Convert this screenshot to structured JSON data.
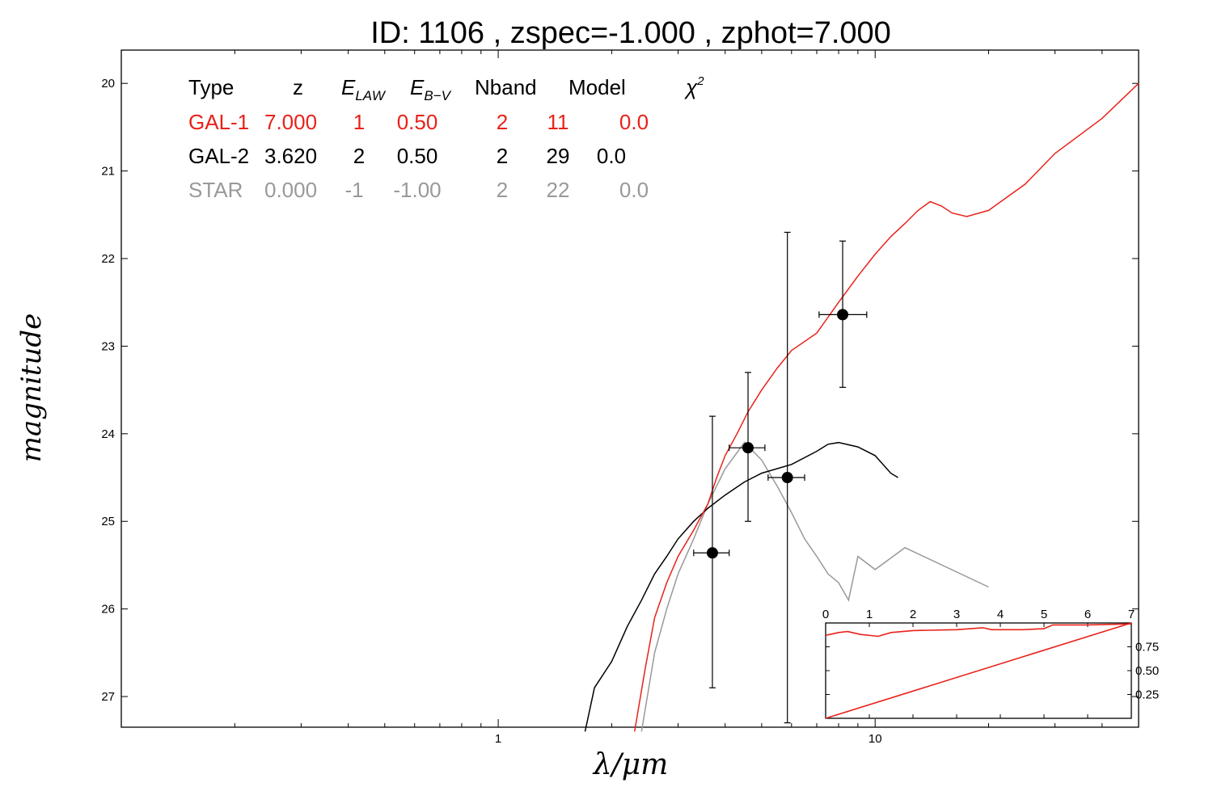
{
  "chart_data": [
    {
      "type": "line",
      "title": "ID:  1106  , zspec=-1.000 , zphot=7.000",
      "xlabel": "λ/μm",
      "ylabel": "magnitude",
      "x_scale": "log",
      "xlim": [
        0.1,
        50
      ],
      "ylim": [
        27.35,
        19.62
      ],
      "y_inverted": true,
      "x_ticks": [
        {
          "value": 1,
          "label": "1"
        },
        {
          "value": 10,
          "label": "10"
        }
      ],
      "y_ticks": [
        20,
        21,
        22,
        23,
        24,
        25,
        26,
        27
      ],
      "y_tick_labels": [
        "20",
        "21",
        "22",
        "23",
        "24",
        "25",
        "26",
        "27"
      ],
      "grid": false,
      "table": {
        "headers": [
          "Type",
          "z",
          "E_LAW",
          "E_B−V",
          "Nband",
          "Model",
          "χ²"
        ],
        "rows": [
          {
            "color": "#e8221a",
            "cells": [
              "GAL-1",
              "7.000",
              "1",
              "0.50",
              "2",
              "11",
              "0.0"
            ]
          },
          {
            "color": "#000000",
            "cells": [
              "GAL-2",
              "3.620",
              "2",
              "0.50",
              "2",
              "29",
              "0.0"
            ]
          },
          {
            "color": "#999999",
            "cells": [
              "STAR",
              "0.000",
              "-1",
              "-1.00",
              "2",
              "22",
              "0.0"
            ]
          }
        ]
      },
      "series": [
        {
          "color": "#e8221a",
          "points": [
            [
              2.3,
              27.4
            ],
            [
              2.45,
              26.7
            ],
            [
              2.6,
              26.1
            ],
            [
              2.8,
              25.7
            ],
            [
              3.0,
              25.4
            ],
            [
              3.3,
              25.1
            ],
            [
              3.6,
              24.8
            ],
            [
              3.8,
              24.5
            ],
            [
              4.0,
              24.25
            ],
            [
              4.3,
              24.0
            ],
            [
              4.6,
              23.75
            ],
            [
              5.0,
              23.5
            ],
            [
              5.5,
              23.25
            ],
            [
              6.0,
              23.05
            ],
            [
              7.0,
              22.85
            ],
            [
              8.0,
              22.5
            ],
            [
              9.0,
              22.2
            ],
            [
              10.0,
              21.95
            ],
            [
              11.0,
              21.75
            ],
            [
              12.0,
              21.6
            ],
            [
              13.0,
              21.45
            ],
            [
              14.0,
              21.35
            ],
            [
              15.0,
              21.4
            ],
            [
              16.0,
              21.48
            ],
            [
              17.5,
              21.52
            ],
            [
              20.0,
              21.45
            ],
            [
              25.0,
              21.15
            ],
            [
              30.0,
              20.8
            ],
            [
              40.0,
              20.4
            ],
            [
              50.0,
              20.0
            ]
          ]
        },
        {
          "color": "#000000",
          "points": [
            [
              1.7,
              27.4
            ],
            [
              1.8,
              26.9
            ],
            [
              2.0,
              26.6
            ],
            [
              2.2,
              26.2
            ],
            [
              2.4,
              25.9
            ],
            [
              2.6,
              25.6
            ],
            [
              2.8,
              25.4
            ],
            [
              3.0,
              25.2
            ],
            [
              3.3,
              25.0
            ],
            [
              3.6,
              24.85
            ],
            [
              4.0,
              24.7
            ],
            [
              4.5,
              24.55
            ],
            [
              5.0,
              24.45
            ],
            [
              6.0,
              24.35
            ],
            [
              7.0,
              24.2
            ],
            [
              7.5,
              24.12
            ],
            [
              8.0,
              24.1
            ],
            [
              9.0,
              24.15
            ],
            [
              10.0,
              24.25
            ],
            [
              11.0,
              24.45
            ],
            [
              11.5,
              24.5
            ]
          ]
        },
        {
          "color": "#999999",
          "points": [
            [
              2.4,
              27.4
            ],
            [
              2.6,
              26.5
            ],
            [
              2.8,
              26.0
            ],
            [
              3.0,
              25.6
            ],
            [
              3.3,
              25.2
            ],
            [
              3.6,
              24.8
            ],
            [
              4.0,
              24.4
            ],
            [
              4.5,
              24.1
            ],
            [
              5.0,
              24.3
            ],
            [
              5.5,
              24.6
            ],
            [
              6.0,
              24.9
            ],
            [
              6.5,
              25.2
            ],
            [
              7.0,
              25.4
            ],
            [
              7.5,
              25.6
            ],
            [
              8.0,
              25.7
            ],
            [
              8.5,
              25.9
            ],
            [
              9.0,
              25.4
            ],
            [
              10.0,
              25.55
            ],
            [
              12.0,
              25.3
            ],
            [
              20.0,
              25.75
            ]
          ]
        }
      ],
      "photometry": [
        {
          "x": 3.7,
          "y": 25.36,
          "xerr": [
            3.3,
            4.1
          ],
          "yerr": [
            23.8,
            26.9
          ]
        },
        {
          "x": 4.6,
          "y": 24.16,
          "xerr": [
            4.1,
            5.1
          ],
          "yerr": [
            23.3,
            25.0
          ]
        },
        {
          "x": 5.85,
          "y": 24.5,
          "xerr": [
            5.2,
            6.5
          ],
          "yerr": [
            21.7,
            27.3
          ]
        },
        {
          "x": 8.2,
          "y": 22.64,
          "xerr": [
            7.1,
            9.5
          ],
          "yerr": [
            21.8,
            23.47
          ]
        }
      ]
    },
    {
      "type": "line",
      "xlim": [
        0,
        7
      ],
      "ylim": [
        0,
        1
      ],
      "x_ticks": [
        0,
        1,
        2,
        3,
        4,
        5,
        6,
        7
      ],
      "x_tick_labels": [
        "0",
        "1",
        "2",
        "3",
        "4",
        "5",
        "6",
        "7"
      ],
      "y_ticks": [
        0.25,
        0.5,
        0.75
      ],
      "y_tick_labels": [
        "0.25",
        "0.50",
        "0.75"
      ],
      "series": [
        {
          "color": "#e8221a",
          "x": [
            0,
            0.3,
            0.5,
            0.8,
            1.2,
            1.5,
            2.0,
            3.0,
            3.6,
            3.8,
            4.5,
            5.0,
            5.2,
            6.0,
            7.0
          ],
          "y": [
            0.87,
            0.9,
            0.91,
            0.88,
            0.86,
            0.9,
            0.92,
            0.93,
            0.95,
            0.93,
            0.93,
            0.94,
            0.98,
            0.98,
            0.99
          ]
        },
        {
          "color": "#e8221a",
          "x": [
            0,
            7
          ],
          "y": [
            0,
            1
          ]
        }
      ]
    }
  ]
}
